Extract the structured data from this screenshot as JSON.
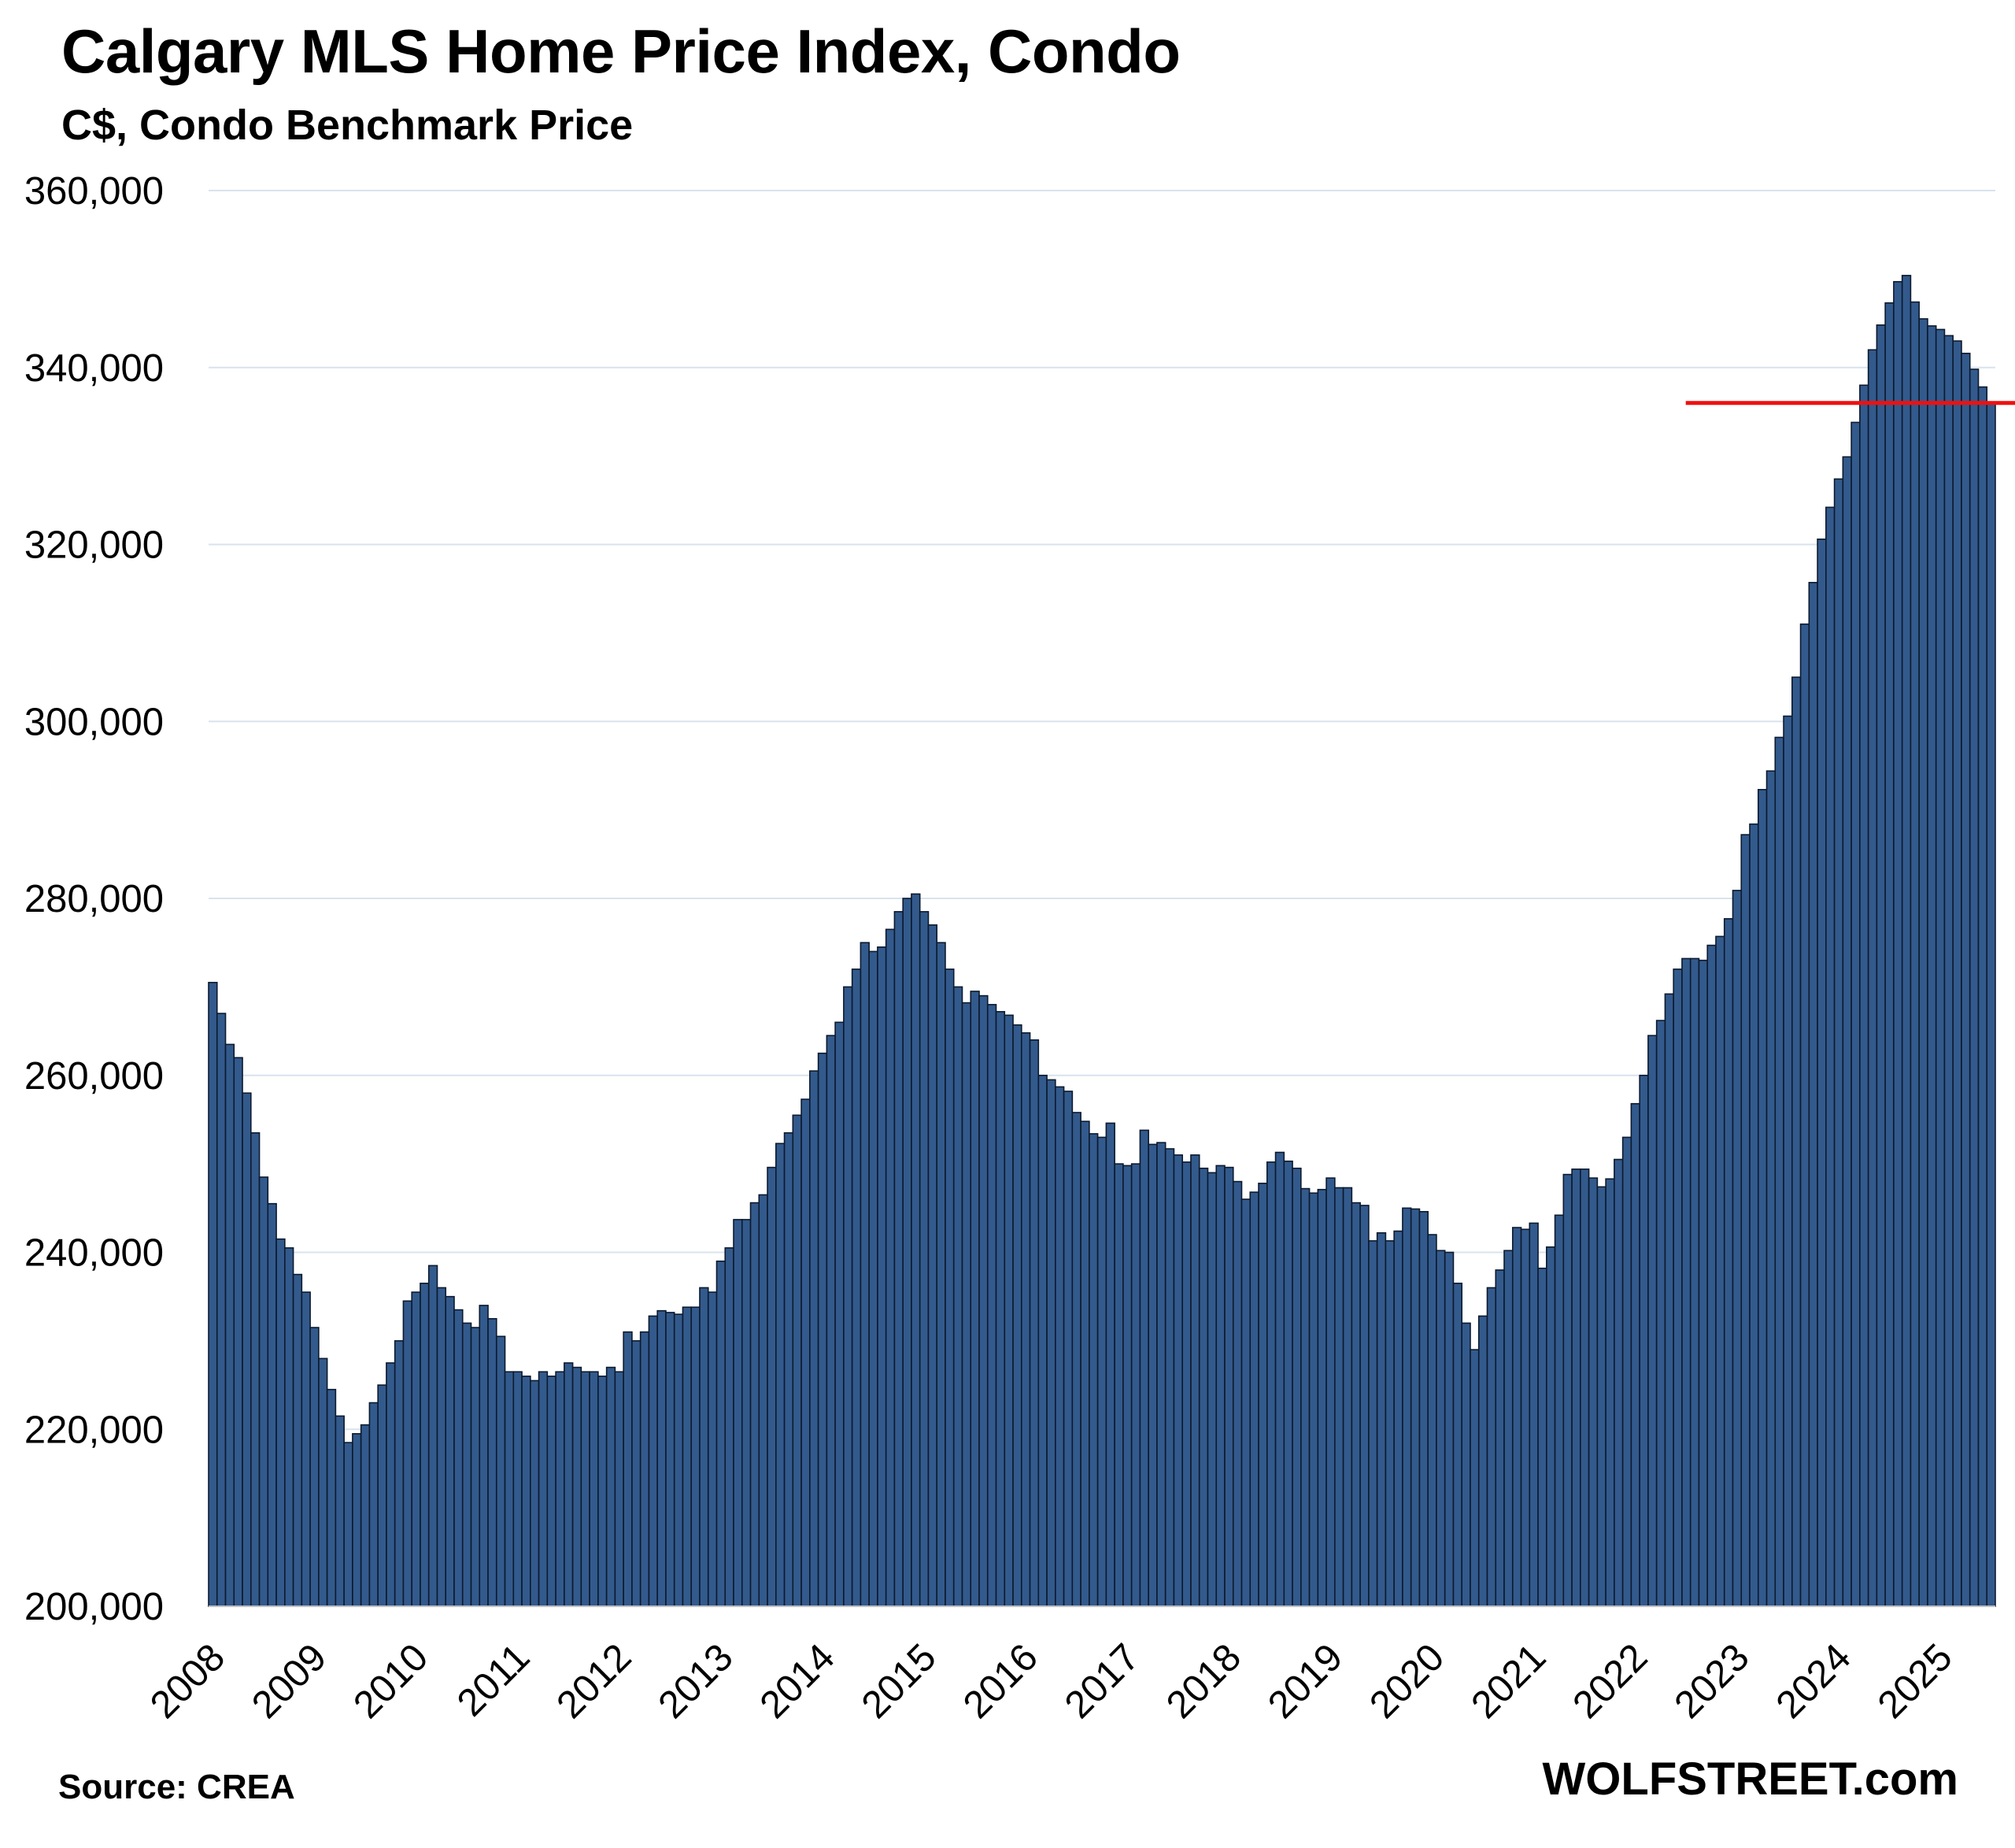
{
  "header": {
    "title": "Calgary MLS Home Price Index, Condo",
    "subtitle": "C$, Condo Benchmark Price"
  },
  "footer": {
    "source": "Source: CREA",
    "brand": "WOLFSTREET.com"
  },
  "colors": {
    "bar_fill": "#335a8c",
    "bar_stroke": "#0c1a2e",
    "grid": "#d9e3ee",
    "reference_line": "#ee1111"
  },
  "chart_data": {
    "type": "bar",
    "title": "Calgary MLS Home Price Index, Condo",
    "subtitle": "C$, Condo Benchmark Price",
    "xlabel": "",
    "ylabel": "",
    "ylim": [
      200000,
      360000
    ],
    "y_ticks": [
      200000,
      220000,
      240000,
      260000,
      280000,
      300000,
      320000,
      340000,
      360000
    ],
    "y_tick_labels": [
      "200,000",
      "220,000",
      "240,000",
      "260,000",
      "280,000",
      "300,000",
      "320,000",
      "340,000",
      "360,000"
    ],
    "x_tick_labels": [
      "2008",
      "2009",
      "2010",
      "2011",
      "2012",
      "2013",
      "2014",
      "2015",
      "2016",
      "2017",
      "2018",
      "2019",
      "2020",
      "2021",
      "2022",
      "2023",
      "2024",
      "2025"
    ],
    "series_name": "Condo Benchmark Price",
    "frequency": "monthly",
    "start": "2008-01",
    "grid": true,
    "reference_line": {
      "value": 336000,
      "start_index": 175,
      "label": ""
    },
    "values": [
      270500,
      267000,
      263500,
      262000,
      258000,
      253500,
      248500,
      245500,
      241500,
      240500,
      237500,
      235500,
      231500,
      228000,
      224500,
      221500,
      218500,
      219500,
      220500,
      223000,
      225000,
      227500,
      230000,
      234500,
      235500,
      236500,
      238500,
      236000,
      235000,
      233500,
      232000,
      231500,
      234000,
      232500,
      230500,
      226500,
      226500,
      226000,
      225500,
      226500,
      226000,
      226500,
      227500,
      227000,
      226500,
      226500,
      226000,
      227000,
      226500,
      231000,
      230000,
      231000,
      232800,
      233400,
      233200,
      233000,
      233800,
      233800,
      236000,
      235500,
      239000,
      240500,
      243700,
      243700,
      245600,
      246500,
      249600,
      252300,
      253500,
      255500,
      257300,
      260500,
      262500,
      264500,
      266000,
      270000,
      272000,
      275000,
      274000,
      274500,
      276500,
      278500,
      280000,
      280500,
      278500,
      277000,
      275000,
      272000,
      270000,
      268200,
      269500,
      269000,
      268000,
      267200,
      266800,
      265700,
      264800,
      264000,
      260000,
      259500,
      258700,
      258200,
      255800,
      254800,
      253400,
      253000,
      254600,
      250000,
      249800,
      250000,
      253800,
      252200,
      252400,
      251700,
      251000,
      250200,
      251000,
      249500,
      249000,
      249800,
      249600,
      248000,
      246000,
      246800,
      247800,
      250200,
      251300,
      250300,
      249500,
      247200,
      246700,
      247100,
      248400,
      247300,
      247300,
      245600,
      245300,
      241300,
      242200,
      241300,
      242400,
      245000,
      244900,
      244600,
      242000,
      240200,
      240000,
      236500,
      232000,
      229000,
      232800,
      236000,
      238000,
      240200,
      242800,
      242600,
      243300,
      238200,
      240600,
      244200,
      248800,
      249400,
      249400,
      248400,
      247400,
      248300,
      250500,
      253000,
      256800,
      260000,
      264500,
      266200,
      269200,
      272000,
      273200,
      273200,
      273000,
      274700,
      275700,
      277700,
      280900,
      287200,
      288400,
      292300,
      294400,
      298200,
      300600,
      305000,
      311000,
      315700,
      320600,
      324200,
      327400,
      329900,
      333800,
      338000,
      342000,
      344800,
      347300,
      349700,
      350400,
      347400,
      345500,
      344700,
      344300,
      343600,
      343000,
      341600,
      339800,
      337800,
      336000
    ]
  }
}
